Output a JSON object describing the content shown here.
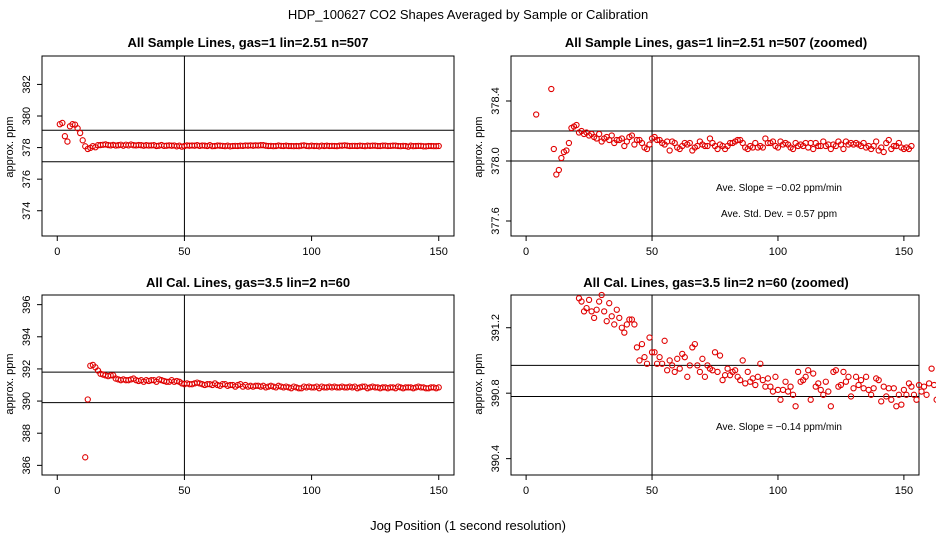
{
  "figure": {
    "title": "HDP_100627  CO2 Shapes Averaged by Sample or Calibration",
    "xlabel": "Jog Position (1 second resolution)",
    "point_color": "#e00000"
  },
  "chart_data": [
    {
      "type": "scatter",
      "title": "All Sample Lines, gas=1 lin=2.51 n=507",
      "ylabel": "approx. ppm",
      "xlim": [
        -6,
        156
      ],
      "ylim": [
        372.4,
        383.8
      ],
      "xticks": [
        0,
        50,
        100,
        150
      ],
      "yticks": [
        374,
        376,
        378,
        380,
        382
      ],
      "hlines": [
        379.1,
        377.1
      ],
      "vline": 50,
      "annotations": [],
      "series": [
        {
          "x_start": 1,
          "x_step": 1,
          "y": [
            379.48,
            379.56,
            378.72,
            378.38,
            379.35,
            379.48,
            379.45,
            379.22,
            378.92,
            378.46,
            378.08,
            377.91,
            377.98,
            378.09,
            378.02,
            378.15,
            378.16,
            378.18,
            378.2,
            378.16,
            378.14,
            378.17,
            378.13,
            378.15,
            378.18,
            378.12,
            378.18,
            378.14,
            378.19,
            378.15,
            378.14,
            378.16,
            378.15,
            378.12,
            378.15,
            378.13,
            378.14,
            378.15,
            378.1,
            378.12,
            378.16,
            378.11,
            378.12,
            378.14,
            378.12,
            378.13,
            378.08,
            378.12,
            378.06,
            378.1,
            378.14,
            378.12,
            378.13,
            378.12,
            378.15,
            378.11,
            378.13,
            378.12,
            378.1,
            378.15,
            378.09,
            378.1,
            378.13,
            378.12,
            378.11,
            378.09,
            378.12,
            378.08,
            378.1,
            378.11,
            378.1,
            378.12,
            378.11,
            378.13,
            378.12,
            378.14,
            378.12,
            378.14,
            378.13,
            378.15,
            378.15,
            378.12,
            378.1,
            378.11,
            378.09,
            378.1,
            378.13,
            378.11,
            378.1,
            378.12,
            378.1,
            378.1,
            378.09,
            378.1,
            378.09,
            378.12,
            378.14,
            378.11,
            378.09,
            378.12,
            378.1,
            378.11,
            378.08,
            378.12,
            378.1,
            378.12,
            378.1,
            378.11,
            378.1,
            378.09,
            378.12,
            378.12,
            378.14,
            378.12,
            378.1,
            378.11,
            378.11,
            378.1,
            378.12,
            378.11,
            378.09,
            378.12,
            378.11,
            378.12,
            378.12,
            378.1,
            378.1,
            378.12,
            378.12,
            378.1,
            378.11,
            378.12,
            378.12,
            378.1,
            378.09,
            378.11,
            378.1,
            378.06,
            378.12,
            378.09,
            378.1,
            378.11,
            378.11,
            378.08,
            378.08,
            378.1,
            378.1,
            378.09,
            378.09,
            378.1
          ]
        }
      ]
    },
    {
      "type": "scatter",
      "title": "All Sample Lines, gas=1 lin=2.51 n=507 (zoomed)",
      "ylabel": "approx. ppm",
      "xlim": [
        -6,
        156
      ],
      "ylim": [
        377.5,
        378.7
      ],
      "xticks": [
        0,
        50,
        100,
        150
      ],
      "yticks": [
        377.6,
        378.0,
        378.4
      ],
      "hlines": [
        378.2,
        378.0
      ],
      "vline": 50,
      "annotations": [
        "Ave. Slope =  −0.02  ppm/min",
        "Ave. Std. Dev. =  0.57  ppm"
      ],
      "series": [
        {
          "x_start": 4,
          "x_step": 1,
          "y": [
            378.31,
            null,
            null,
            null,
            null,
            null,
            378.48,
            378.08,
            377.91,
            377.94,
            378.02,
            378.06,
            378.07,
            378.12,
            378.22,
            378.23,
            378.24,
            378.19,
            378.2,
            378.18,
            378.19,
            378.17,
            378.18,
            378.16,
            378.15,
            378.18,
            378.13,
            378.15,
            378.16,
            378.14,
            378.17,
            378.12,
            378.14,
            378.14,
            378.15,
            378.1,
            378.13,
            378.16,
            378.17,
            378.11,
            378.14,
            378.14,
            378.12,
            378.09,
            378.08,
            378.11,
            378.15,
            378.16,
            378.14,
            378.14,
            378.12,
            378.11,
            378.13,
            378.07,
            378.13,
            378.12,
            378.09,
            378.08,
            378.1,
            378.12,
            378.11,
            378.12,
            378.07,
            378.09,
            378.1,
            378.13,
            378.11,
            378.1,
            378.1,
            378.15,
            378.12,
            378.1,
            378.08,
            378.11,
            378.1,
            378.08,
            378.1,
            378.12,
            378.12,
            378.13,
            378.14,
            378.14,
            378.12,
            378.09,
            378.08,
            378.1,
            378.09,
            378.12,
            378.09,
            378.1,
            378.09,
            378.15,
            378.12,
            378.12,
            378.13,
            378.1,
            378.09,
            378.13,
            378.11,
            378.12,
            378.11,
            378.09,
            378.08,
            378.12,
            378.1,
            378.11,
            378.1,
            378.12,
            378.09,
            378.12,
            378.08,
            378.12,
            378.1,
            378.1,
            378.13,
            378.1,
            378.11,
            378.08,
            378.11,
            378.1,
            378.13,
            378.11,
            378.08,
            378.13,
            378.11,
            378.12,
            378.11,
            378.12,
            378.11,
            378.1,
            378.12,
            378.09,
            378.1,
            378.08,
            378.1,
            378.13,
            378.07,
            378.09,
            378.06,
            378.12,
            378.14,
            378.08,
            378.1,
            378.1,
            378.12,
            378.09,
            378.08,
            378.09,
            378.08,
            378.1
          ]
        }
      ]
    },
    {
      "type": "scatter",
      "title": "All Cal. Lines, gas=3.5 lin=2 n=60",
      "ylabel": "approx. ppm",
      "xlim": [
        -6,
        156
      ],
      "ylim": [
        385.4,
        396.6
      ],
      "xticks": [
        0,
        50,
        100,
        150
      ],
      "yticks": [
        386,
        388,
        390,
        392,
        394,
        396
      ],
      "hlines": [
        391.8,
        389.9
      ],
      "vline": 50,
      "annotations": [],
      "series": [
        {
          "x_start": 11,
          "x_step": 1,
          "y": [
            386.5,
            390.1,
            392.2,
            392.25,
            392.1,
            391.9,
            391.7,
            391.65,
            391.6,
            391.55,
            391.6,
            391.6,
            391.4,
            391.35,
            391.3,
            391.35,
            391.3,
            391.3,
            391.35,
            391.4,
            391.3,
            391.25,
            391.3,
            391.2,
            391.3,
            391.25,
            391.3,
            391.3,
            391.2,
            391.35,
            391.3,
            391.25,
            391.2,
            391.2,
            391.3,
            391.2,
            391.25,
            391.2,
            391.1,
            391.05,
            391.1,
            391.05,
            391.05,
            391.1,
            391.15,
            391.1,
            391.05,
            391.0,
            391.05,
            391.05,
            391.0,
            391.1,
            391.0,
            390.95,
            391.05,
            391.05,
            390.95,
            391.0,
            391.0,
            390.9,
            391.0,
            391.05,
            390.9,
            391.0,
            390.9,
            390.95,
            390.9,
            390.95,
            390.95,
            390.9,
            390.95,
            390.85,
            390.9,
            390.95,
            390.9,
            390.85,
            390.95,
            390.9,
            390.85,
            390.9,
            390.85,
            390.8,
            390.9,
            390.85,
            390.8,
            390.8,
            390.9,
            390.85,
            390.9,
            390.85,
            390.85,
            390.9,
            390.8,
            390.9,
            390.85,
            390.85,
            390.9,
            390.85,
            390.9,
            390.85,
            390.85,
            390.9,
            390.85,
            390.85,
            390.9,
            390.85,
            390.9,
            390.8,
            390.85,
            390.9,
            390.9,
            390.8,
            390.85,
            390.9,
            390.85,
            390.85,
            390.8,
            390.85,
            390.85,
            390.8,
            390.85,
            390.85,
            390.8,
            390.9,
            390.85,
            390.8,
            390.85,
            390.85,
            390.85,
            390.8,
            390.85,
            390.9,
            390.85,
            390.85,
            390.8,
            390.8,
            390.85,
            390.85,
            390.8,
            390.85
          ]
        }
      ]
    },
    {
      "type": "scatter",
      "title": "All Cal. Lines, gas=3.5 lin=2 n=60 (zoomed)",
      "ylabel": "approx. ppm",
      "xlim": [
        -6,
        156
      ],
      "ylim": [
        390.3,
        391.4
      ],
      "xticks": [
        0,
        50,
        100,
        150
      ],
      "yticks": [
        390.4,
        390.8,
        391.2
      ],
      "hlines": [
        390.97,
        390.78
      ],
      "vline": 50,
      "annotations": [
        "Ave. Slope =  −0.14  ppm/min"
      ],
      "series": [
        {
          "x_start": 21,
          "x_step": 1,
          "y": [
            391.38,
            391.36,
            391.3,
            391.32,
            391.37,
            391.3,
            391.26,
            391.31,
            391.36,
            391.4,
            391.3,
            391.24,
            391.35,
            391.27,
            391.22,
            391.31,
            391.26,
            391.2,
            391.17,
            391.22,
            391.25,
            391.25,
            391.22,
            391.08,
            391.0,
            391.1,
            391.02,
            390.98,
            391.14,
            391.05,
            391.05,
            390.98,
            391.02,
            390.98,
            391.12,
            390.94,
            391.0,
            390.97,
            390.93,
            391.01,
            390.95,
            391.04,
            391.02,
            390.9,
            390.97,
            391.08,
            391.1,
            390.97,
            390.93,
            391.01,
            390.9,
            390.97,
            390.95,
            390.94,
            391.05,
            390.93,
            391.03,
            390.88,
            390.91,
            390.95,
            390.91,
            390.93,
            390.94,
            390.9,
            390.88,
            391.0,
            390.86,
            390.93,
            390.87,
            390.89,
            390.85,
            390.9,
            390.98,
            390.88,
            390.84,
            390.89,
            390.84,
            390.81,
            390.9,
            390.82,
            390.76,
            390.82,
            390.87,
            390.81,
            390.84,
            390.79,
            390.72,
            390.93,
            390.87,
            390.88,
            390.9,
            390.94,
            390.76,
            390.92,
            390.84,
            390.86,
            390.82,
            390.79,
            390.87,
            390.81,
            390.72,
            390.93,
            390.94,
            390.84,
            390.85,
            390.93,
            390.87,
            390.9,
            390.78,
            390.83,
            390.9,
            390.85,
            390.88,
            390.83,
            390.9,
            390.82,
            390.79,
            390.83,
            390.89,
            390.88,
            390.75,
            390.84,
            390.78,
            390.83,
            390.76,
            390.83,
            390.72,
            390.79,
            390.73,
            390.82,
            390.79,
            390.86,
            390.84,
            390.79,
            390.76,
            390.85,
            390.81,
            390.84,
            390.79,
            390.86,
            390.95,
            390.85,
            390.76,
            390.81,
            390.78,
            390.8,
            390.85,
            390.84,
            390.82,
            390.83,
            390.81,
            390.82
          ]
        }
      ]
    }
  ]
}
